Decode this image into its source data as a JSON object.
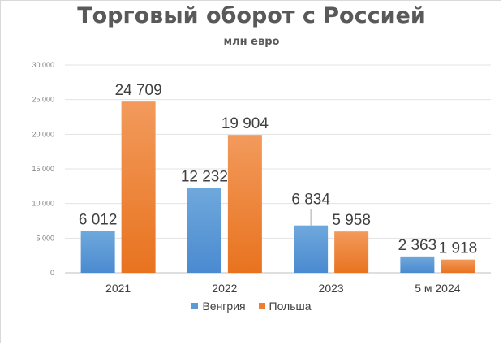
{
  "chart_data": {
    "type": "bar",
    "title": "Торговый оборот с Россией",
    "subtitle": "млн евро",
    "categories": [
      "2021",
      "2022",
      "2023",
      "5 м 2024"
    ],
    "series": [
      {
        "name": "Венгрия",
        "values": [
          6012,
          12232,
          6834,
          2363
        ],
        "labels": [
          "6 012",
          "12 232",
          "6 834",
          "2 363"
        ],
        "color": "#5b9bd5"
      },
      {
        "name": "Польша",
        "values": [
          24709,
          19904,
          5958,
          1918
        ],
        "labels": [
          "24 709",
          "19 904",
          "5 958",
          "1 918"
        ],
        "color": "#ed7d31"
      }
    ],
    "yticks": [
      "0",
      "5 000",
      "10 000",
      "15 000",
      "20 000",
      "25 000",
      "30 000"
    ],
    "ylim": [
      0,
      30000
    ],
    "grid": true,
    "legend_position": "bottom"
  }
}
